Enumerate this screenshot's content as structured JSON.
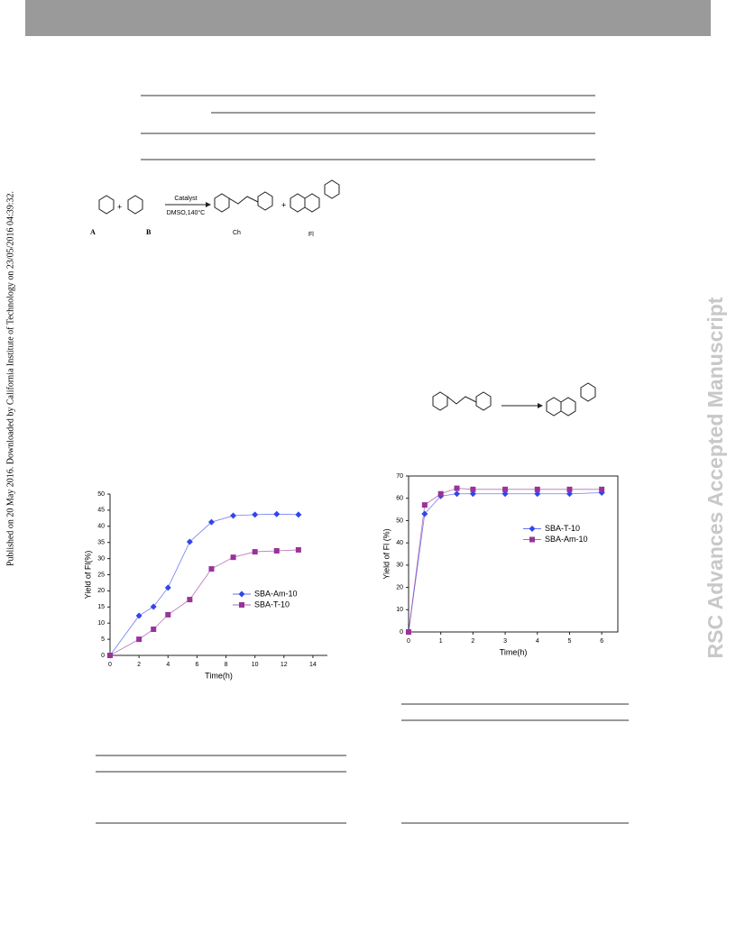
{
  "side_text": "Published on 20 May 2016. Downloaded by California Institute of Technology on 23/05/2016 04:39:32.",
  "watermark": "RSC Advances Accepted Manuscript",
  "scheme": {
    "catalyst": "Catalyst",
    "conditions": "DMSO,140°C",
    "labels": [
      "A",
      "B",
      "Ch",
      "Fl"
    ]
  },
  "chart_data": [
    {
      "type": "scatter-line",
      "xlabel": "Time(h)",
      "ylabel": "Yield of Fl(%)",
      "xlim": [
        0,
        15
      ],
      "xticks": [
        0,
        2,
        4,
        6,
        8,
        10,
        12,
        14
      ],
      "ylim": [
        0,
        50
      ],
      "yticks": [
        0,
        5,
        10,
        15,
        20,
        25,
        30,
        35,
        40,
        45,
        50
      ],
      "legend": "lower-right",
      "frame": false,
      "x": [
        0,
        2,
        3,
        4,
        5.5,
        7,
        8.5,
        10,
        11.5,
        13
      ],
      "series": [
        {
          "name": "SBA-Am-10",
          "color": "#3344ee",
          "marker": "diamond",
          "values": [
            0,
            12.3,
            15.1,
            21,
            35.2,
            41.3,
            43.3,
            43.6,
            43.8,
            43.6
          ]
        },
        {
          "name": "SBA-T-10",
          "color": "#993399",
          "marker": "square",
          "values": [
            0,
            5,
            8.1,
            12.6,
            17.3,
            26.8,
            30.4,
            32.1,
            32.4,
            32.7
          ]
        }
      ]
    },
    {
      "type": "scatter-line",
      "xlabel": "Time(h)",
      "ylabel": "Yield of Fl (%)",
      "xlim": [
        0,
        6.5
      ],
      "xticks": [
        0,
        1,
        2,
        3,
        4,
        5,
        6
      ],
      "ylim": [
        0,
        70
      ],
      "yticks": [
        0,
        10,
        20,
        30,
        40,
        50,
        60,
        70
      ],
      "legend": "center-right",
      "frame": true,
      "x": [
        0,
        0.5,
        1,
        1.5,
        2,
        3,
        4,
        5,
        6
      ],
      "series": [
        {
          "name": "SBA-T-10",
          "color": "#3344ee",
          "marker": "diamond",
          "values": [
            0,
            53,
            61,
            62,
            62,
            62,
            62,
            62,
            62.5
          ]
        },
        {
          "name": "SBA-Am-10",
          "color": "#993399",
          "marker": "square",
          "values": [
            0,
            57,
            62,
            64.5,
            64,
            64,
            64,
            64,
            64
          ]
        }
      ]
    }
  ]
}
